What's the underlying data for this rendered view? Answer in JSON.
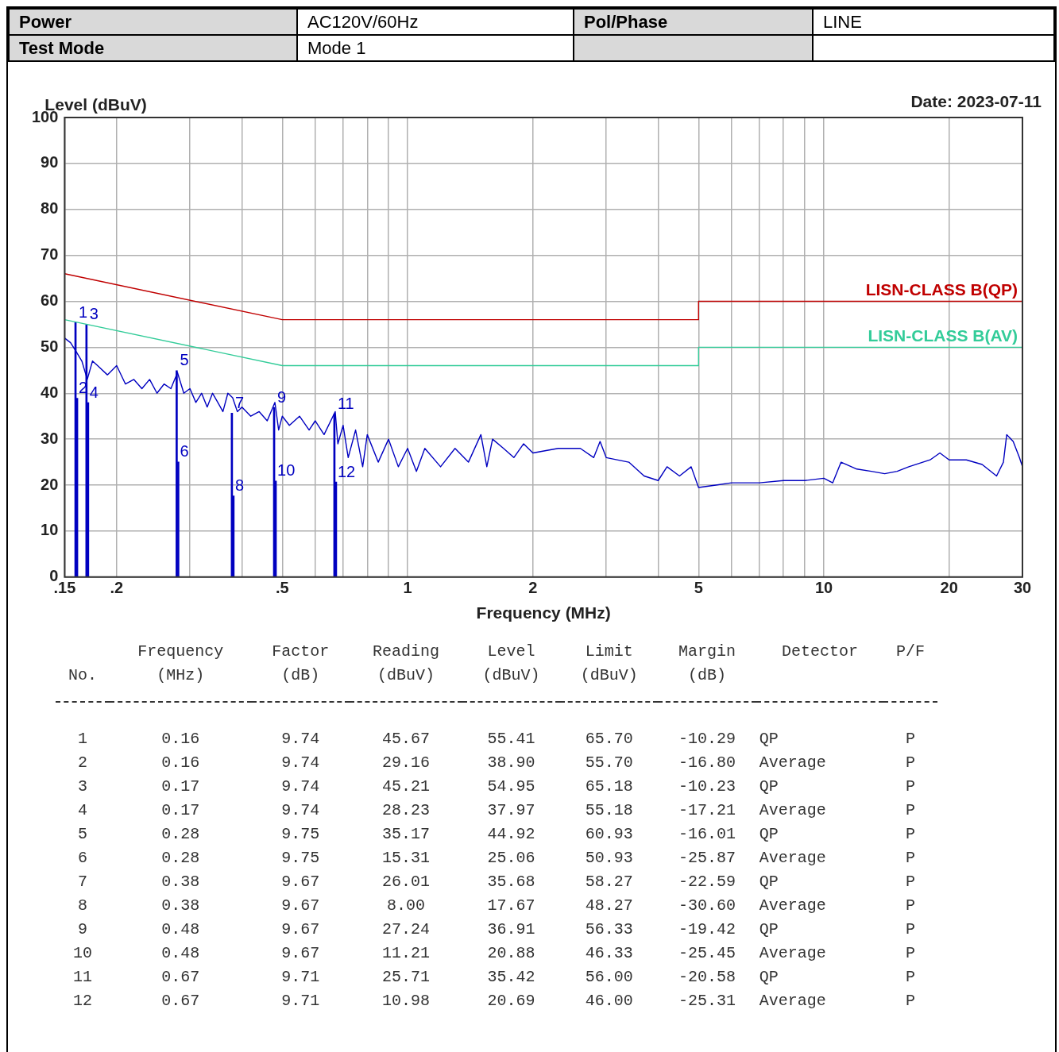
{
  "chart_data": {
    "type": "line",
    "xlabel": "Frequency (MHz)",
    "ylabel": "Level (dBuV)",
    "log": "x",
    "grid": true,
    "xlim": [
      0.15,
      30
    ],
    "xticks": [
      {
        "value": 0.15,
        "label": ".15"
      },
      {
        "value": 0.2,
        "label": ".2"
      },
      {
        "value": 0.3,
        "label": null
      },
      {
        "value": 0.4,
        "label": null
      },
      {
        "value": 0.5,
        "label": ".5"
      },
      {
        "value": 0.6,
        "label": null
      },
      {
        "value": 0.7,
        "label": null
      },
      {
        "value": 0.8,
        "label": null
      },
      {
        "value": 0.9,
        "label": null
      },
      1,
      2,
      {
        "value": 3,
        "label": null
      },
      {
        "value": 4,
        "label": null
      },
      5,
      {
        "value": 6,
        "label": null
      },
      {
        "value": 7,
        "label": null
      },
      {
        "value": 8,
        "label": null
      },
      {
        "value": 9,
        "label": null
      },
      10,
      20,
      30
    ],
    "ylim": [
      0,
      100
    ],
    "yticks": [
      0,
      10,
      20,
      30,
      40,
      50,
      60,
      70,
      80,
      90,
      100
    ],
    "series": [
      {
        "color": "#0000c0",
        "x": [
          0.15,
          0.155,
          0.16,
          0.165,
          0.17,
          0.175,
          0.18,
          0.19,
          0.2,
          0.21,
          0.22,
          0.23,
          0.24,
          0.25,
          0.26,
          0.27,
          0.28,
          0.29,
          0.3,
          0.31,
          0.32,
          0.33,
          0.34,
          0.35,
          0.36,
          0.37,
          0.38,
          0.39,
          0.4,
          0.42,
          0.44,
          0.46,
          0.48,
          0.49,
          0.5,
          0.52,
          0.55,
          0.58,
          0.6,
          0.63,
          0.67,
          0.68,
          0.7,
          0.72,
          0.75,
          0.78,
          0.8,
          0.85,
          0.9,
          0.95,
          1,
          1.05,
          1.1,
          1.2,
          1.3,
          1.4,
          1.5,
          1.55,
          1.6,
          1.7,
          1.8,
          1.9,
          2,
          2.3,
          2.6,
          2.8,
          2.9,
          3,
          3.4,
          3.7,
          4,
          4.2,
          4.5,
          4.8,
          5,
          5.5,
          6,
          7,
          8,
          9,
          10,
          10.5,
          11,
          12,
          13,
          14,
          15,
          16,
          18,
          19,
          20,
          22,
          24,
          26,
          27,
          27.5,
          28.5,
          29.5,
          30
        ],
        "values": [
          52,
          51,
          49,
          47,
          43,
          47,
          46,
          44,
          46,
          42,
          43,
          41,
          43,
          40,
          42,
          41,
          44.5,
          40,
          41,
          38,
          40,
          37,
          40,
          38,
          36,
          40,
          39,
          36,
          37,
          35,
          36,
          34,
          38,
          32,
          35,
          33,
          35,
          32,
          34,
          31,
          36,
          29,
          33,
          26,
          32,
          24,
          31,
          25,
          30,
          24,
          28,
          23,
          28,
          24,
          28,
          25,
          31,
          24,
          30,
          28,
          26,
          29,
          27,
          28,
          28,
          26,
          29.5,
          26,
          25,
          22,
          21,
          24,
          22,
          24,
          19.5,
          20,
          20.5,
          20.5,
          21,
          21,
          21.5,
          20.5,
          25,
          23.5,
          23,
          22.5,
          23,
          24,
          25.5,
          27,
          25.5,
          25.5,
          24.5,
          22,
          25,
          31,
          29.5,
          26,
          24
        ]
      },
      {
        "name": "LISN-CLASS B(QP)",
        "color": "#c00000",
        "x": [
          0.15,
          0.5,
          5,
          5,
          30
        ],
        "values": [
          66,
          56,
          56,
          60,
          60
        ]
      },
      {
        "name": "LISN-CLASS B(AV)",
        "color": "#33cc99",
        "x": [
          0.15,
          0.5,
          5,
          5,
          30
        ],
        "values": [
          56,
          46,
          46,
          50,
          50
        ]
      },
      {
        "type": "bar",
        "color": "#0000c0",
        "x": [
          0.16,
          0.17,
          0.28,
          0.38,
          0.48,
          0.67
        ],
        "values": [
          55.41,
          54.95,
          44.92,
          35.68,
          36.91,
          35.42
        ]
      },
      {
        "type": "bar",
        "color": "#0000c0",
        "x": [
          0.16,
          0.17,
          0.28,
          0.38,
          0.48,
          0.67
        ],
        "values": [
          38.9,
          37.97,
          25.06,
          17.67,
          20.88,
          20.69
        ]
      }
    ],
    "annotations": [
      "Power",
      "AC120V/60Hz",
      "Pol/Phase",
      "LINE",
      "Test Mode",
      "Mode 1",
      "Date: 2023-07-11",
      "Frequency Factor Reading Level Limit Margin Detector P/F",
      "No. (MHz) (dB) (dBuV) (dBuV) (dBuV) (dB)",
      "1 0.16 9.74 45.67 55.41 65.70 -10.29 QP P",
      "2 0.16 9.74 29.16 38.90 55.70 -16.80 Average P",
      "3 0.17 9.74 45.21 54.95 65.18 -10.23 QP P",
      "4 0.17 9.74 28.23 37.97 55.18 -17.21 Average P",
      "5 0.28 9.75 35.17 44.92 60.93 -16.01 QP P",
      "6 0.28 9.75 15.31 25.06 50.93 -25.87 Average P",
      "7 0.38 9.67 26.01 35.68 58.27 -22.59 QP P",
      "8 0.38 9.67 8.00 17.67 48.27 -30.60 Average P",
      "9 0.48 9.67 27.24 36.91 56.33 -19.42 QP P",
      "10 0.48 9.67 11.21 20.88 46.33 -25.45 Average P",
      "11 0.67 9.71 25.71 35.42 56.00 -20.58 QP P",
      "12 0.67 9.71 10.98 20.69 46.00 -25.31 Average P",
      {
        "text": "1",
        "x": 0.16,
        "y": 55.41
      },
      {
        "text": "3",
        "x": 0.17,
        "y": 54.95
      },
      {
        "text": "5",
        "x": 0.28,
        "y": 44.92
      },
      {
        "text": "7",
        "x": 0.38,
        "y": 35.68
      },
      {
        "text": "9",
        "x": 0.48,
        "y": 36.91
      },
      {
        "text": "11",
        "x": 0.67,
        "y": 35.42
      },
      {
        "text": "2",
        "x": 0.16,
        "y": 38.9
      },
      {
        "text": "4",
        "x": 0.17,
        "y": 37.97
      },
      {
        "text": "6",
        "x": 0.28,
        "y": 25.06
      },
      {
        "text": "8",
        "x": 0.38,
        "y": 17.67
      },
      {
        "text": "10",
        "x": 0.48,
        "y": 20.88
      },
      {
        "text": "12",
        "x": 0.67,
        "y": 20.69
      }
    ]
  }
}
